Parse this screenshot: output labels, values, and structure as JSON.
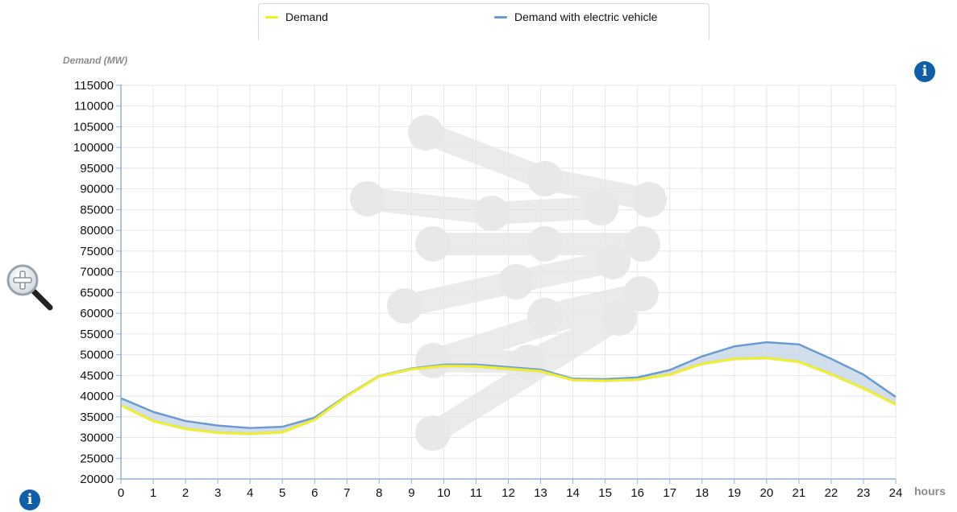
{
  "legend": {
    "items": [
      {
        "label": "Demand",
        "color": "#f2f21a"
      },
      {
        "label": "Demand with electric vehicle",
        "color": "#6b9bd1"
      }
    ]
  },
  "icons": {
    "info_top": "info-icon",
    "info_bottom": "info-icon",
    "zoom": "magnifier-zoom-in-icon",
    "watermark": "watermark-logo"
  },
  "chart_data": {
    "type": "area",
    "ylabel": "Demand (MW)",
    "xlabel": "hours",
    "x": [
      0,
      1,
      2,
      3,
      4,
      5,
      6,
      7,
      8,
      9,
      10,
      11,
      12,
      13,
      14,
      15,
      16,
      17,
      18,
      19,
      20,
      21,
      22,
      23,
      24
    ],
    "xlim": [
      0,
      24
    ],
    "ylim": [
      20000,
      115000
    ],
    "yticks": [
      20000,
      25000,
      30000,
      35000,
      40000,
      45000,
      50000,
      55000,
      60000,
      65000,
      70000,
      75000,
      80000,
      85000,
      90000,
      95000,
      100000,
      105000,
      110000,
      115000
    ],
    "grid": true,
    "legend_position": "top",
    "series": [
      {
        "name": "Demand",
        "color": "#f2f21a",
        "values": [
          37800,
          34000,
          32100,
          31200,
          30900,
          31300,
          34300,
          40000,
          44800,
          46500,
          47300,
          47200,
          46600,
          46000,
          43900,
          43700,
          44000,
          45200,
          47800,
          49000,
          49200,
          48300,
          45300,
          41900,
          38000
        ]
      },
      {
        "name": "Demand with electric vehicle",
        "color": "#6b9bd1",
        "values": [
          39500,
          36200,
          34000,
          32900,
          32300,
          32600,
          34800,
          40200,
          44900,
          46700,
          47600,
          47600,
          47000,
          46400,
          44200,
          44100,
          44500,
          46300,
          49600,
          52000,
          53000,
          52500,
          49000,
          45200,
          39800
        ]
      }
    ]
  }
}
